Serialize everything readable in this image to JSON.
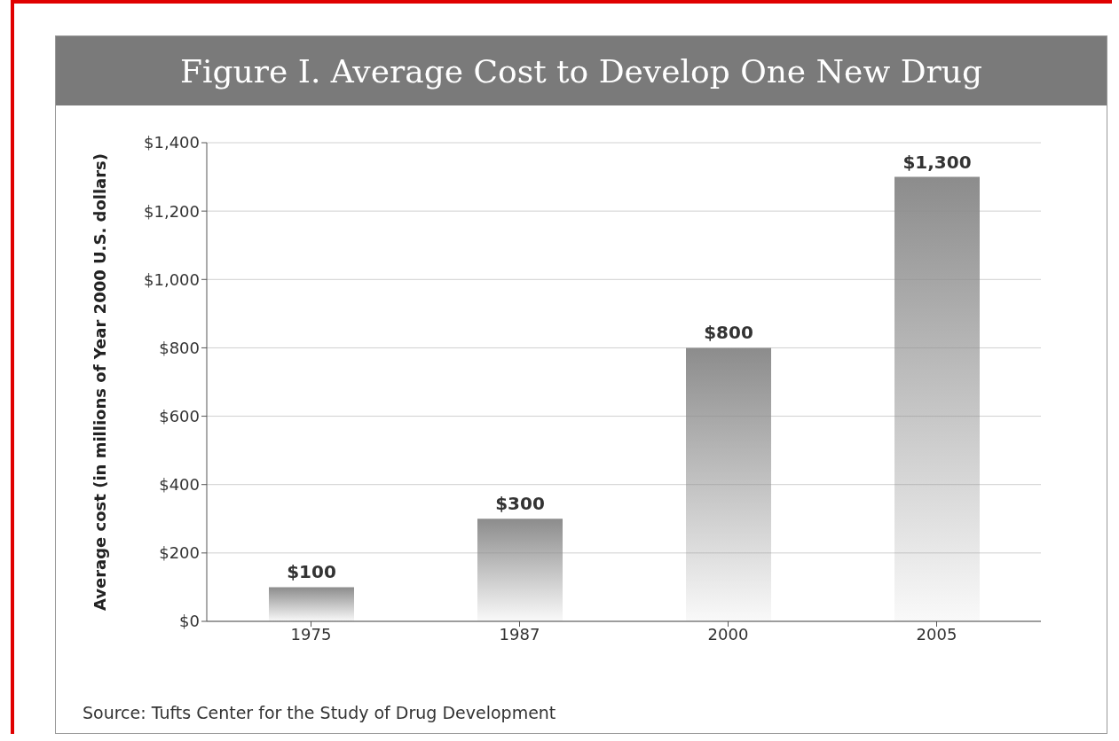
{
  "chart_data": {
    "type": "bar",
    "title": "Figure I. Average Cost to Develop One New Drug",
    "ylabel": "Average cost (in millions of Year 2000 U.S. dollars)",
    "categories": [
      "1975",
      "1987",
      "2000",
      "2005"
    ],
    "values": [
      100,
      300,
      800,
      1300
    ],
    "value_labels": [
      "$100",
      "$300",
      "$800",
      "$1,300"
    ],
    "color": "#8c8c8c",
    "ylim": [
      0,
      1400
    ],
    "yticks": [
      {
        "value": 0,
        "label": "$0"
      },
      {
        "value": 200,
        "label": "$200"
      },
      {
        "value": 400,
        "label": "$400"
      },
      {
        "value": 600,
        "label": "$600"
      },
      {
        "value": 800,
        "label": "$800"
      },
      {
        "value": 1000,
        "label": "$1,000"
      },
      {
        "value": 1200,
        "label": "$1,200"
      },
      {
        "value": 1400,
        "label": "$1,400"
      }
    ],
    "grid": "y",
    "annotations": [
      "Source: Tufts Center for the Study of Drug Development"
    ]
  }
}
